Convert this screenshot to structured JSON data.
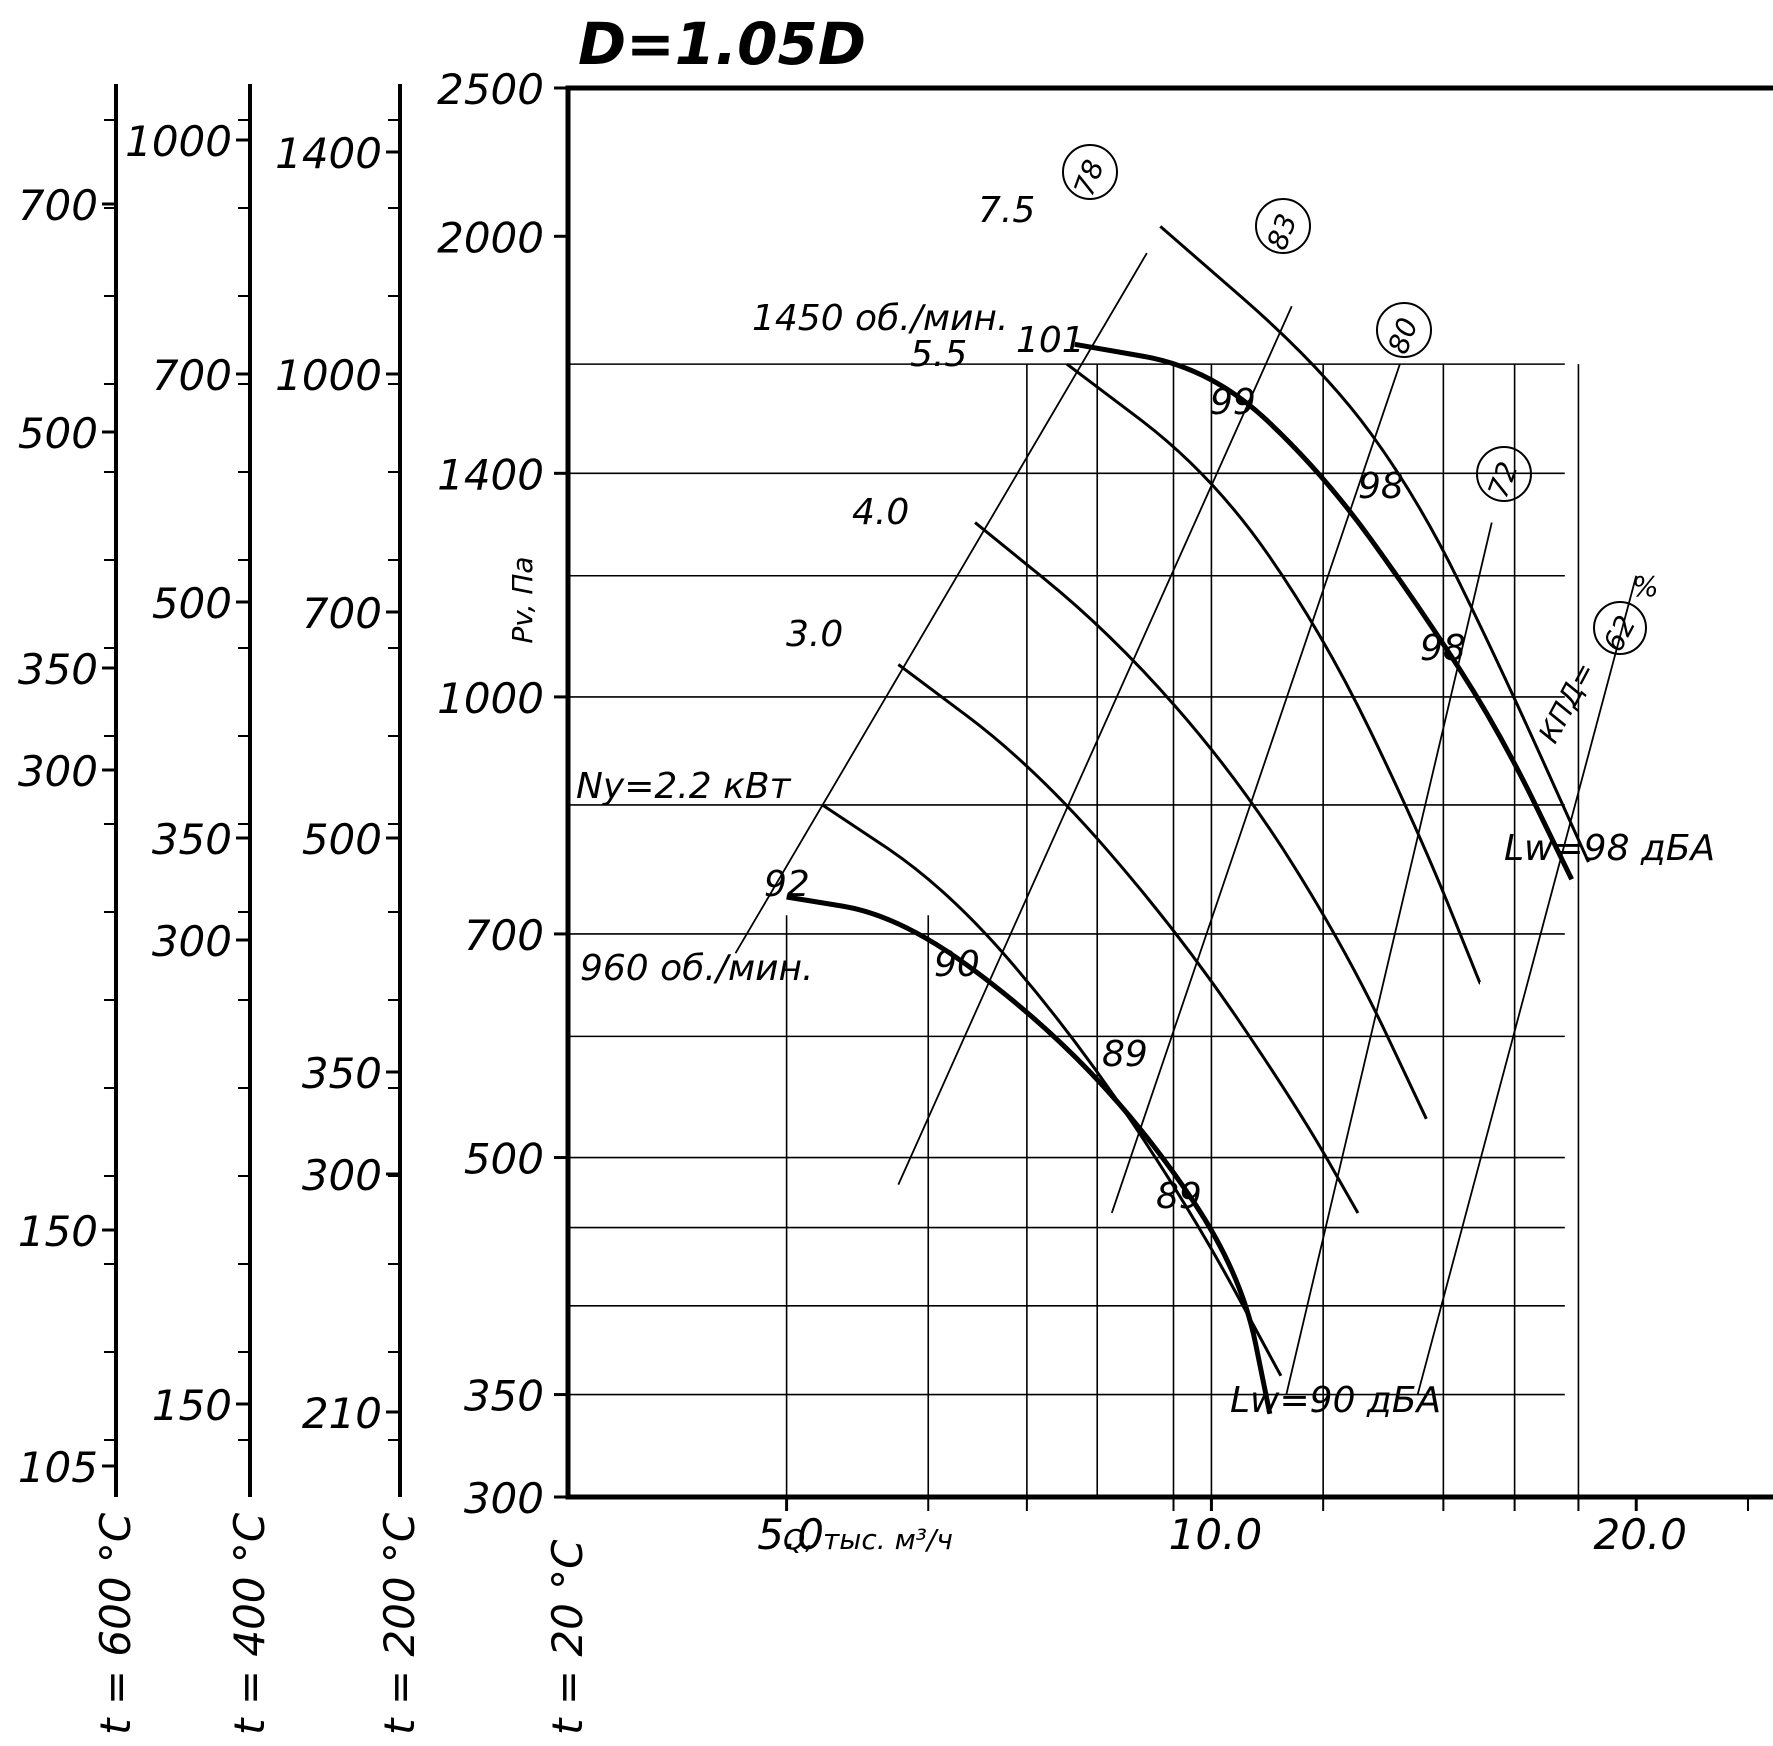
{
  "chart_data": {
    "type": "line",
    "title": "D=1.05D",
    "xlabel": "Q, тыс. м³/ч",
    "ylabel": "Pv, Па",
    "x_scale": "log",
    "y_scale": "log",
    "xlim": [
      3.5,
      25
    ],
    "ylim": [
      300,
      2500
    ],
    "x_tick_labels": [
      {
        "value": 5,
        "label": "5.0"
      },
      {
        "value": 10,
        "label": "10.0"
      },
      {
        "value": 20,
        "label": "20.0"
      }
    ],
    "x_minor_ticks": [
      6.3,
      7.4,
      9.4,
      12.0,
      14.6,
      16.4,
      18.2,
      24.0
    ],
    "y_tick_labels": [
      {
        "value": 2500,
        "label": "2500"
      },
      {
        "value": 2000,
        "label": "2000"
      },
      {
        "value": 1400,
        "label": "1400"
      },
      {
        "value": 1000,
        "label": "1000"
      },
      {
        "value": 700,
        "label": "700"
      },
      {
        "value": 500,
        "label": "500"
      },
      {
        "value": 350,
        "label": "350"
      },
      {
        "value": 300,
        "label": "300"
      }
    ],
    "h_grid": [
      1650,
      1400,
      1200,
      1000,
      850,
      700,
      600,
      500,
      450,
      400,
      350
    ],
    "v_grid": [
      5.0,
      6.3,
      7.4,
      8.3,
      9.4,
      10.0,
      12.0,
      14.6,
      16.4,
      18.2
    ],
    "temperature_axes": [
      {
        "label": "t = 600 °C",
        "ticks": [
          "700",
          "500",
          "350",
          "300",
          "150",
          "105"
        ]
      },
      {
        "label": "t = 400 °C",
        "ticks": [
          "1000",
          "700",
          "500",
          "350",
          "300",
          "150"
        ]
      },
      {
        "label": "t = 200 °C",
        "ticks": [
          "1400",
          "1000",
          "700",
          "500",
          "350",
          "300",
          "210"
        ]
      },
      {
        "label": "t = 20 °C",
        "ticks": []
      }
    ],
    "series": [
      {
        "name": "7.5",
        "speed": "1450 об./мин.",
        "bold": false,
        "x": [
          9.2,
          12.0,
          14.0,
          16.0,
          18.5
        ],
        "y": [
          2030,
          1640,
          1350,
          1050,
          780
        ]
      },
      {
        "name": "5.5",
        "speed": "1450 об./мин.",
        "bold": false,
        "x": [
          7.9,
          10.0,
          12.0,
          14.0,
          15.5
        ],
        "y": [
          1650,
          1400,
          1100,
          820,
          650
        ]
      },
      {
        "name": "4.0",
        "speed": "1450 об./мин.",
        "bold": false,
        "x": [
          6.8,
          8.5,
          10.5,
          12.5,
          14.2
        ],
        "y": [
          1300,
          1100,
          880,
          680,
          530
        ]
      },
      {
        "name": "3.0",
        "speed": "1450 об./мин.",
        "bold": false,
        "x": [
          6.0,
          7.5,
          9.5,
          11.5,
          12.7
        ],
        "y": [
          1050,
          900,
          700,
          540,
          460
        ]
      },
      {
        "name": "Ny=2.2 кВт",
        "speed": "1450 об./мин.",
        "bold": false,
        "x": [
          5.3,
          6.5,
          8.0,
          9.7,
          11.2
        ],
        "y": [
          850,
          750,
          600,
          460,
          360
        ]
      },
      {
        "name": "1450 об./мин.",
        "bold": true,
        "x": [
          8.0,
          10.0,
          12.0,
          14.0,
          16.0,
          18.0
        ],
        "y": [
          1700,
          1640,
          1400,
          1150,
          950,
          760
        ]
      },
      {
        "name": "960 об./мин.",
        "bold": true,
        "x": [
          5.0,
          6.0,
          7.5,
          9.0,
          10.5,
          11.0
        ],
        "y": [
          740,
          720,
          620,
          520,
          420,
          340
        ]
      }
    ],
    "efficiency_lines": [
      {
        "name": "78",
        "x": [
          4.6,
          9.0
        ],
        "y": [
          680,
          1950
        ]
      },
      {
        "name": "83",
        "x": [
          6.0,
          11.4
        ],
        "y": [
          480,
          1800
        ]
      },
      {
        "name": "80",
        "x": [
          8.5,
          13.6
        ],
        "y": [
          460,
          1650
        ]
      },
      {
        "name": "72",
        "x": [
          11.3,
          15.8
        ],
        "y": [
          350,
          1300
        ]
      },
      {
        "name": "КПД=62%",
        "x": [
          14.0,
          20.0
        ],
        "y": [
          350,
          1200
        ]
      }
    ],
    "sound_labels": [
      "101",
      "99",
      "98",
      "98",
      "92",
      "90",
      "89",
      "89"
    ],
    "annotations": {
      "lw_top": "Lw=98 дБА",
      "lw_bottom": "Lw=90 дБА",
      "speed_top": "1450 об./мин.",
      "speed_bottom": "960 об./мин.",
      "efficiency_prefix": "КПД=",
      "efficiency_value": "62",
      "efficiency_unit": "%"
    }
  }
}
